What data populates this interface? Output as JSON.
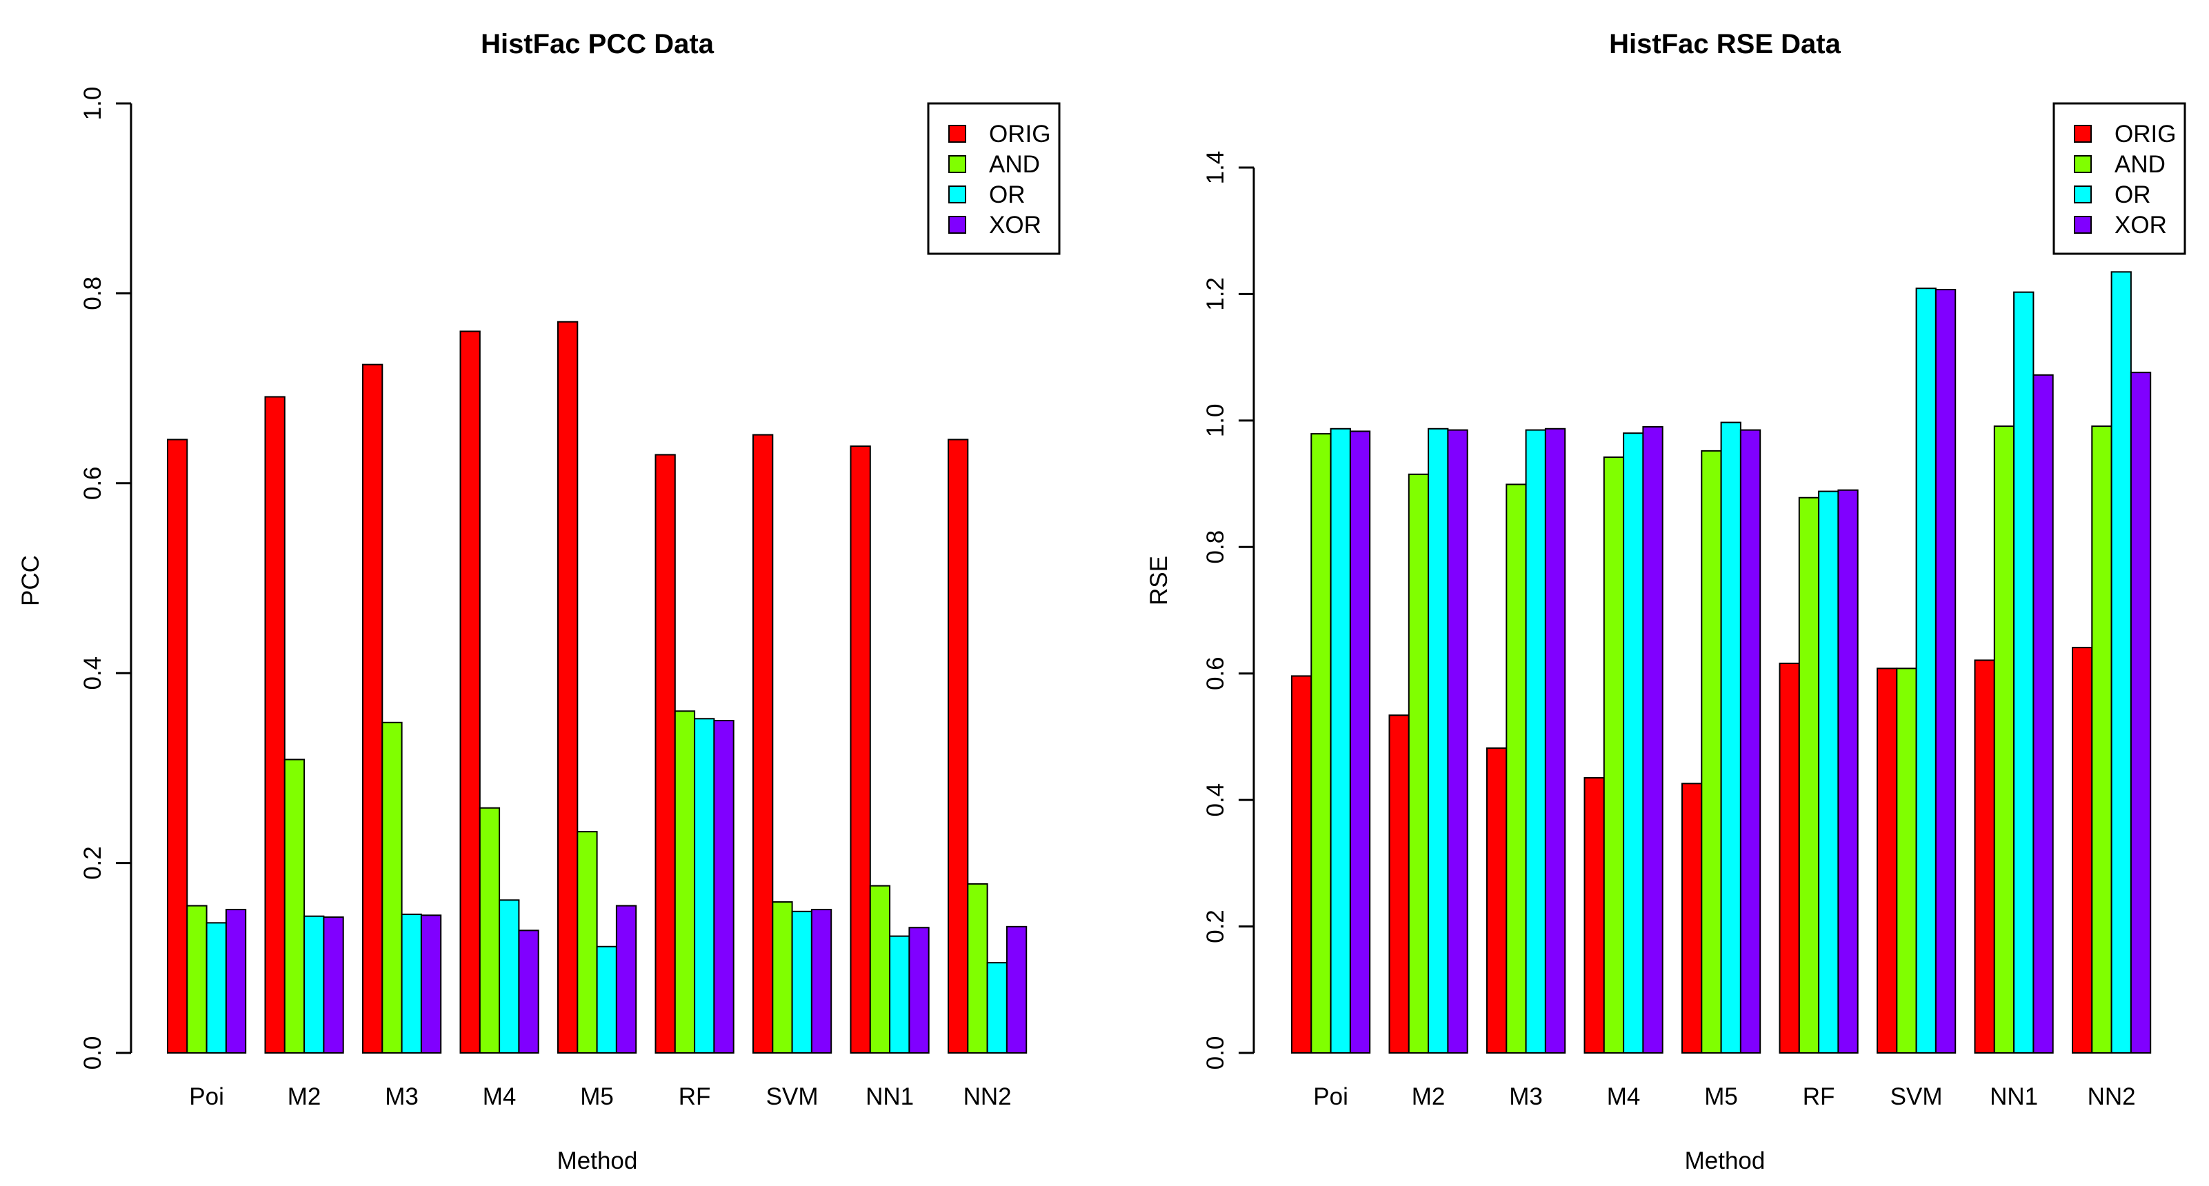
{
  "chart_data": [
    {
      "type": "bar",
      "title": "HistFac PCC Data",
      "xlabel": "Method",
      "ylabel": "PCC",
      "ylim": [
        0,
        1.0
      ],
      "yticks": [
        "0.0",
        "0.2",
        "0.4",
        "0.6",
        "0.8",
        "1.0"
      ],
      "categories": [
        "Poi",
        "M2",
        "M3",
        "M4",
        "M5",
        "RF",
        "SVM",
        "NN1",
        "NN2"
      ],
      "legend_position": "top-right",
      "series": [
        {
          "name": "ORIG",
          "color": "#FF0000",
          "values": [
            0.646,
            0.691,
            0.725,
            0.76,
            0.77,
            0.63,
            0.651,
            0.639,
            0.646
          ]
        },
        {
          "name": "AND",
          "color": "#80FF00",
          "values": [
            0.155,
            0.309,
            0.348,
            0.258,
            0.233,
            0.36,
            0.159,
            0.176,
            0.178
          ]
        },
        {
          "name": "OR",
          "color": "#00FFFF",
          "values": [
            0.137,
            0.144,
            0.146,
            0.161,
            0.112,
            0.352,
            0.149,
            0.123,
            0.095
          ]
        },
        {
          "name": "XOR",
          "color": "#8000FF",
          "values": [
            0.151,
            0.143,
            0.145,
            0.129,
            0.155,
            0.35,
            0.151,
            0.132,
            0.133
          ]
        }
      ]
    },
    {
      "type": "bar",
      "title": "HistFac RSE Data",
      "xlabel": "Method",
      "ylabel": "RSE",
      "ylim": [
        0,
        1.4
      ],
      "yticks": [
        "0.0",
        "0.2",
        "0.4",
        "0.6",
        "0.8",
        "1.0",
        "1.2",
        "1.4"
      ],
      "categories": [
        "Poi",
        "M2",
        "M3",
        "M4",
        "M5",
        "RF",
        "SVM",
        "NN1",
        "NN2"
      ],
      "legend_position": "top-right",
      "series": [
        {
          "name": "ORIG",
          "color": "#FF0000",
          "values": [
            0.596,
            0.534,
            0.482,
            0.435,
            0.426,
            0.616,
            0.608,
            0.621,
            0.641
          ]
        },
        {
          "name": "AND",
          "color": "#80FF00",
          "values": [
            0.979,
            0.915,
            0.899,
            0.942,
            0.952,
            0.878,
            0.608,
            0.991,
            0.991
          ]
        },
        {
          "name": "OR",
          "color": "#00FFFF",
          "values": [
            0.987,
            0.987,
            0.985,
            0.98,
            0.997,
            0.888,
            1.209,
            1.203,
            1.235
          ]
        },
        {
          "name": "XOR",
          "color": "#8000FF",
          "values": [
            0.983,
            0.985,
            0.987,
            0.99,
            0.985,
            0.89,
            1.207,
            1.072,
            1.076
          ]
        }
      ]
    }
  ]
}
